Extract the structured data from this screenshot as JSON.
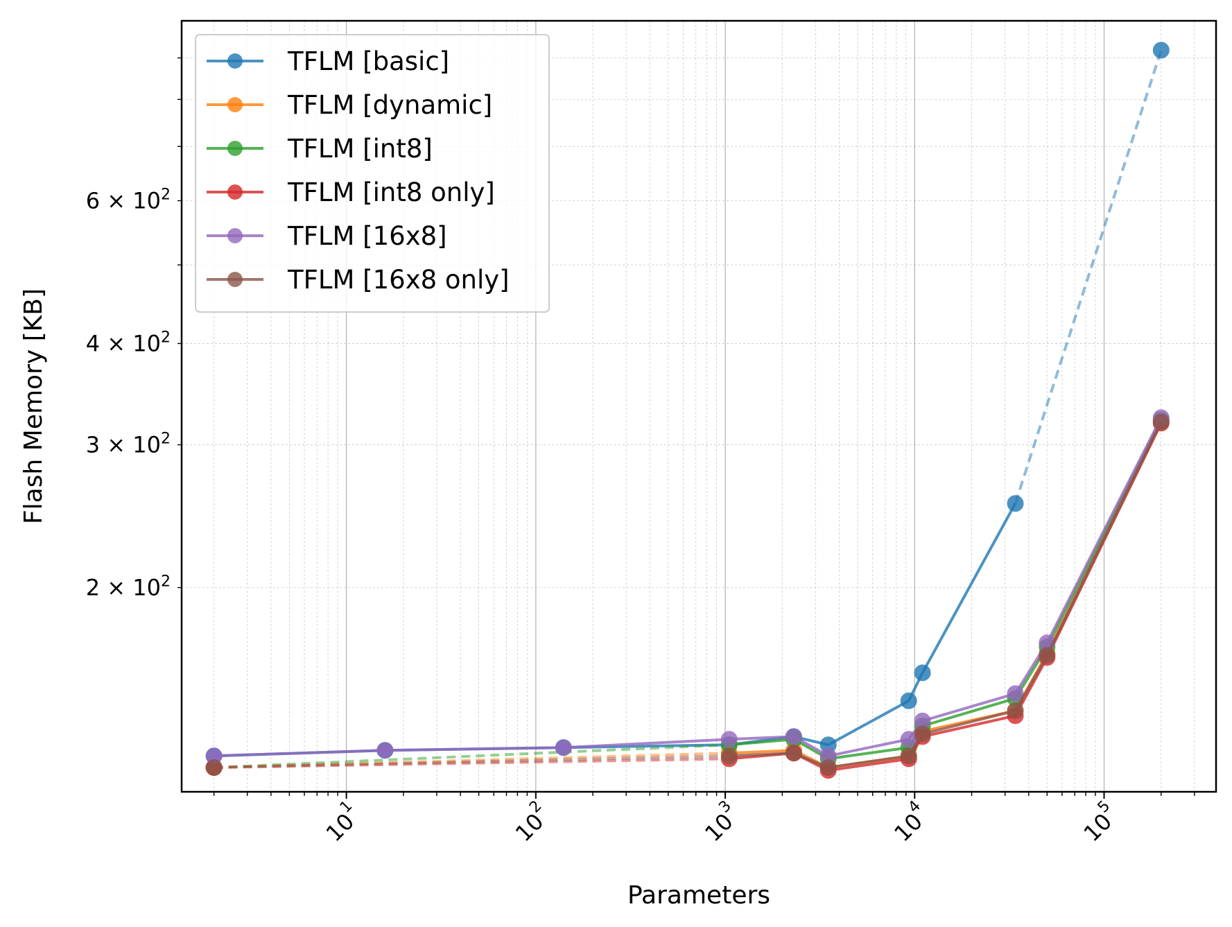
{
  "chart_data": {
    "type": "line",
    "title": "",
    "xlabel": "Parameters",
    "ylabel": "Flash Memory [KB]",
    "xscale": "log",
    "yscale": "log",
    "xlim": [
      1.35,
      390000
    ],
    "ylim": [
      112,
      1000
    ],
    "grid": true,
    "legend_position": "top-left",
    "x_ticks": [
      {
        "value": 10,
        "label": "10",
        "exp": "1"
      },
      {
        "value": 100,
        "label": "10",
        "exp": "2"
      },
      {
        "value": 1000,
        "label": "10",
        "exp": "3"
      },
      {
        "value": 10000,
        "label": "10",
        "exp": "4"
      },
      {
        "value": 100000,
        "label": "10",
        "exp": "5"
      }
    ],
    "y_ticks": [
      {
        "value": 200,
        "label": "2 × 10",
        "exp": "2"
      },
      {
        "value": 300,
        "label": "3 × 10",
        "exp": "2"
      },
      {
        "value": 400,
        "label": "4 × 10",
        "exp": "2"
      },
      {
        "value": 600,
        "label": "6 × 10",
        "exp": "2"
      }
    ],
    "series": [
      {
        "name": "TFLM [basic]",
        "color": "#1f77b4",
        "solid": [
          [
            2,
            124
          ],
          [
            16,
            126
          ],
          [
            140,
            127
          ],
          [
            1050,
            128
          ],
          [
            2300,
            131
          ],
          [
            3500,
            128
          ],
          [
            9300,
            145
          ],
          [
            11000,
            157
          ],
          [
            34000,
            254
          ]
        ],
        "dashed": [
          [
            34000,
            254
          ],
          [
            200000,
            920
          ]
        ]
      },
      {
        "name": "TFLM [dynamic]",
        "color": "#ff7f0e",
        "solid": [
          [
            1050,
            125
          ],
          [
            2300,
            126
          ],
          [
            3500,
            120
          ],
          [
            9300,
            124
          ],
          [
            11000,
            133
          ],
          [
            34000,
            141
          ],
          [
            50000,
            166
          ],
          [
            200000,
            321
          ]
        ],
        "dashed": [
          [
            2,
            120
          ],
          [
            1050,
            125
          ]
        ]
      },
      {
        "name": "TFLM [int8]",
        "color": "#2ca02c",
        "solid": [
          [
            1050,
            128
          ],
          [
            2300,
            130
          ],
          [
            3500,
            123
          ],
          [
            9300,
            127
          ],
          [
            11000,
            135
          ],
          [
            34000,
            146
          ],
          [
            50000,
            169
          ],
          [
            200000,
            322
          ]
        ],
        "dashed": [
          [
            2,
            120
          ],
          [
            1050,
            128
          ]
        ]
      },
      {
        "name": "TFLM [int8 only]",
        "color": "#d62728",
        "solid": [
          [
            1050,
            123
          ],
          [
            2300,
            125
          ],
          [
            3500,
            119
          ],
          [
            9300,
            123
          ],
          [
            11000,
            131
          ],
          [
            34000,
            139
          ],
          [
            50000,
            164
          ],
          [
            200000,
            319
          ]
        ],
        "dashed": [
          [
            2,
            120
          ],
          [
            1050,
            123
          ]
        ]
      },
      {
        "name": "TFLM [16x8]",
        "color": "#9467bd",
        "solid": [
          [
            2,
            124
          ],
          [
            16,
            126
          ],
          [
            140,
            127
          ],
          [
            1050,
            130
          ],
          [
            2300,
            131
          ],
          [
            3500,
            124
          ],
          [
            9300,
            130
          ],
          [
            11000,
            137
          ],
          [
            34000,
            148
          ],
          [
            50000,
            171
          ],
          [
            200000,
            324
          ]
        ],
        "dashed": []
      },
      {
        "name": "TFLM [16x8 only]",
        "color": "#8c564b",
        "solid": [
          [
            1050,
            124
          ],
          [
            2300,
            125
          ],
          [
            3500,
            120
          ],
          [
            9300,
            124
          ],
          [
            11000,
            132
          ],
          [
            34000,
            141
          ],
          [
            50000,
            165
          ],
          [
            200000,
            320
          ]
        ],
        "dashed": [
          [
            2,
            120
          ],
          [
            1050,
            124
          ]
        ]
      }
    ]
  }
}
